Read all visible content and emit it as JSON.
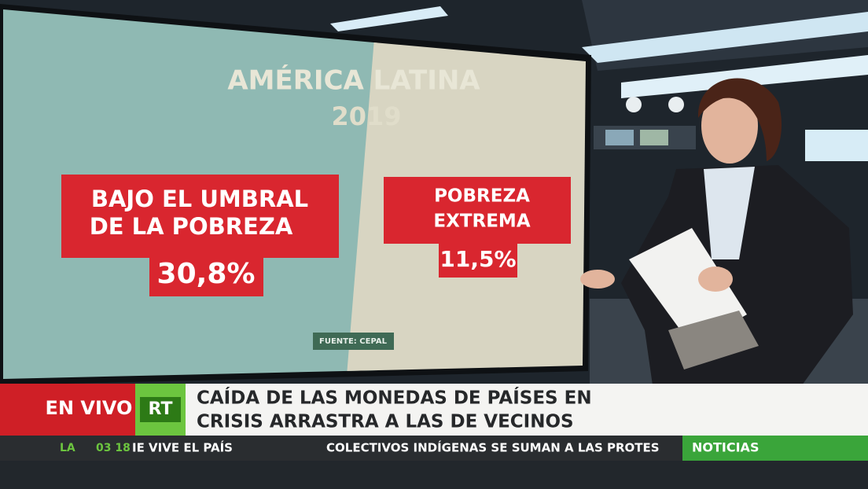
{
  "screen": {
    "title": "AMÉRICA LATINA",
    "year": "2019",
    "panels": [
      {
        "label_lines": [
          "BAJO EL UMBRAL",
          "DE LA POBREZA"
        ],
        "value": "30,8%"
      },
      {
        "label_lines": [
          "POBREZA",
          "EXTREMA"
        ],
        "value": "11,5%"
      }
    ],
    "source": "FUENTE: CEPAL"
  },
  "lower_third": {
    "live": "EN VIVO",
    "logo": "RT",
    "headline_lines": [
      "CAÍDA DE LAS MONEDAS DE PAÍSES EN",
      "CRISIS ARRASTRA A LAS DE VECINOS"
    ]
  },
  "ticker": {
    "location": "LA",
    "time": "03 18",
    "items": [
      "IE VIVE EL PAÍS",
      "COLECTIVOS INDÍGENAS SE SUMAN A LAS PROTES"
    ],
    "section": "NOTICIAS"
  }
}
